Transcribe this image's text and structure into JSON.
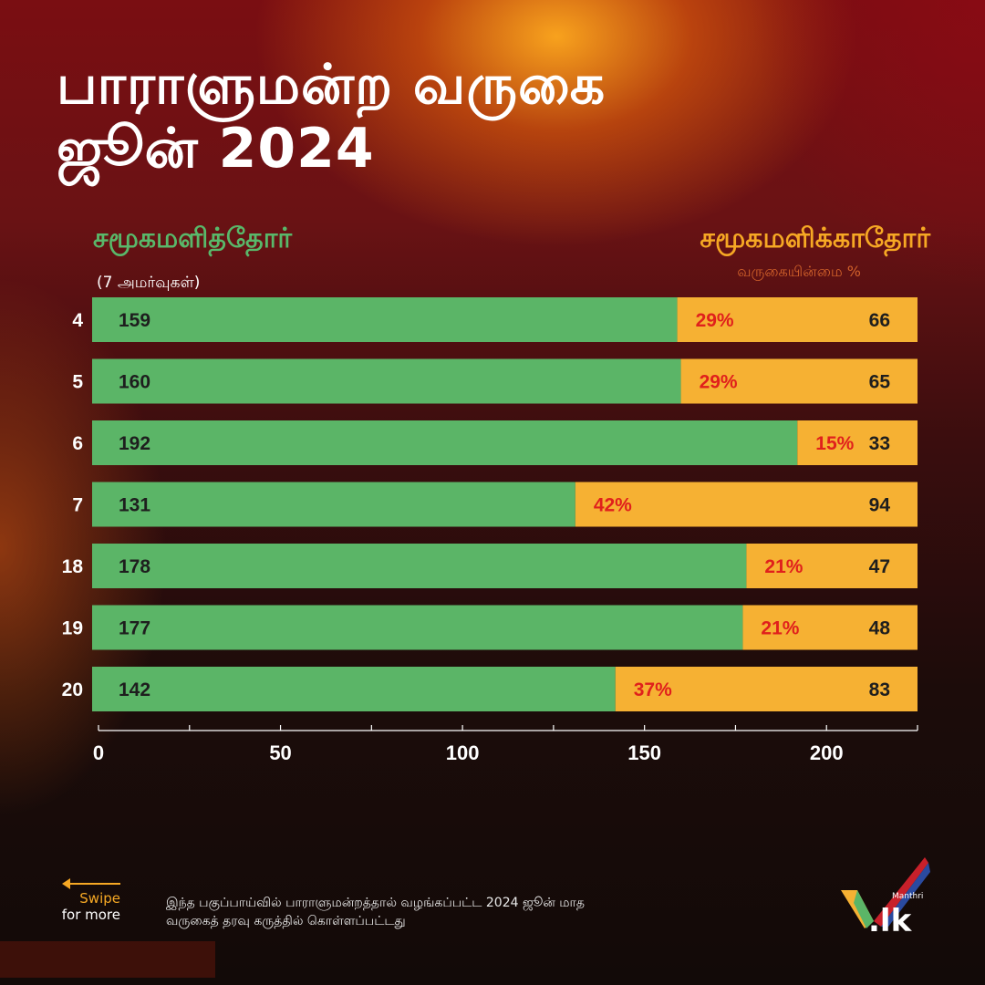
{
  "title": {
    "line1": "பாராளுமன்ற வருகை",
    "line2": "ஜூன் 2024"
  },
  "legend": {
    "attended": "சமூகமளித்தோர்",
    "absent": "சமூகமளிக்காதோர்",
    "sitting_note": "(7 அமர்வுகள்)",
    "absence_note": "வருகையின்மை %"
  },
  "colors": {
    "attended": "#5bb567",
    "absent": "#f6b133",
    "percent_text": "#e0201c",
    "value_text": "#1e1e1e"
  },
  "chart_data": {
    "type": "bar",
    "orientation": "horizontal",
    "stacked": true,
    "categories": [
      "4",
      "5",
      "6",
      "7",
      "18",
      "19",
      "20"
    ],
    "series": [
      {
        "name": "சமூகமளித்தோர்",
        "values": [
          159,
          160,
          192,
          131,
          178,
          177,
          142
        ]
      },
      {
        "name": "சமூகமளிக்காதோர்",
        "values": [
          66,
          65,
          33,
          94,
          47,
          48,
          83
        ]
      }
    ],
    "absence_percent_labels": [
      "29%",
      "29%",
      "15%",
      "42%",
      "21%",
      "21%",
      "37%"
    ],
    "xlim": [
      0,
      225
    ],
    "x_ticks": [
      0,
      50,
      100,
      150,
      200
    ],
    "minor_ticks": [
      25,
      75,
      125,
      175,
      225
    ]
  },
  "footer": {
    "note": "இந்த பகுப்பாய்வில் பாராளுமன்றத்தால் வழங்கப்பட்ட 2024 ஜூன் மாத வருகைத் தரவு கருத்தில் கொள்ளப்பட்டது",
    "swipe_line1": "Swipe",
    "swipe_line2": "for more"
  },
  "logo": {
    "small": "Manthri",
    "main": ".lk"
  }
}
